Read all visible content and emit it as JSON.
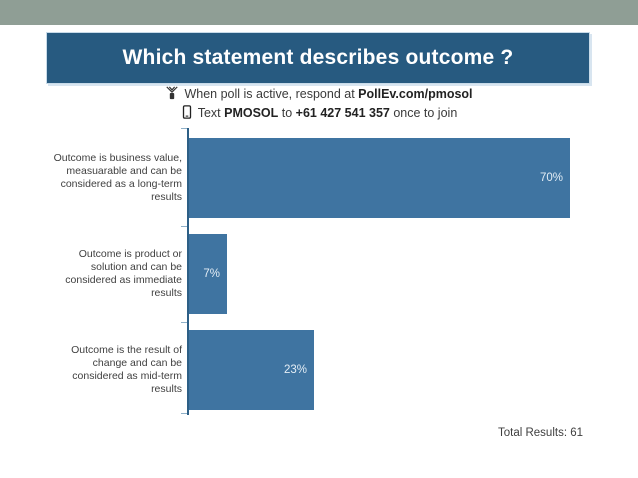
{
  "slide": {
    "title": "Which statement describes outcome ?",
    "footer": "Total Results: 61"
  },
  "instructions": {
    "line1_prefix": "When poll is active, respond at ",
    "line1_bold": "PollEv.com/pmosol",
    "line2_prefix": "Text ",
    "line2_bold1": "PMOSOL",
    "line2_mid": " to ",
    "line2_bold2": "+61 427 541 357",
    "line2_suffix": " once to join"
  },
  "chart_data": {
    "type": "bar",
    "orientation": "horizontal",
    "title": "Which statement describes outcome ?",
    "categories": [
      "Outcome is business value, measuarable and can be considered as a long-term results",
      "Outcome is product or solution and can be considered as immediate results",
      "Outcome is the result of change and can be considered as mid-term results"
    ],
    "categories_lines": [
      [
        "Outcome is business value,",
        "measuarable and can be",
        "considered as a long-term",
        "results"
      ],
      [
        "Outcome is product or",
        "solution and can be",
        "considered as immediate",
        "results"
      ],
      [
        "Outcome is the result of",
        "change and can be",
        "considered as mid-term",
        "results"
      ]
    ],
    "values": [
      70,
      7,
      23
    ],
    "value_labels": [
      "70%",
      "7%",
      "23%"
    ],
    "total_results": 61,
    "xlim": [
      0,
      80
    ],
    "grid": false,
    "legend": false,
    "bar_color": "#3f74a1",
    "axis_color": "#2d5f86",
    "value_label_color": "#e3edf5"
  },
  "colors": {
    "top_band": "#8f9e95",
    "title_bar": "#275a80",
    "title_text": "#ffffff",
    "body_text": "#3a3a3a"
  }
}
